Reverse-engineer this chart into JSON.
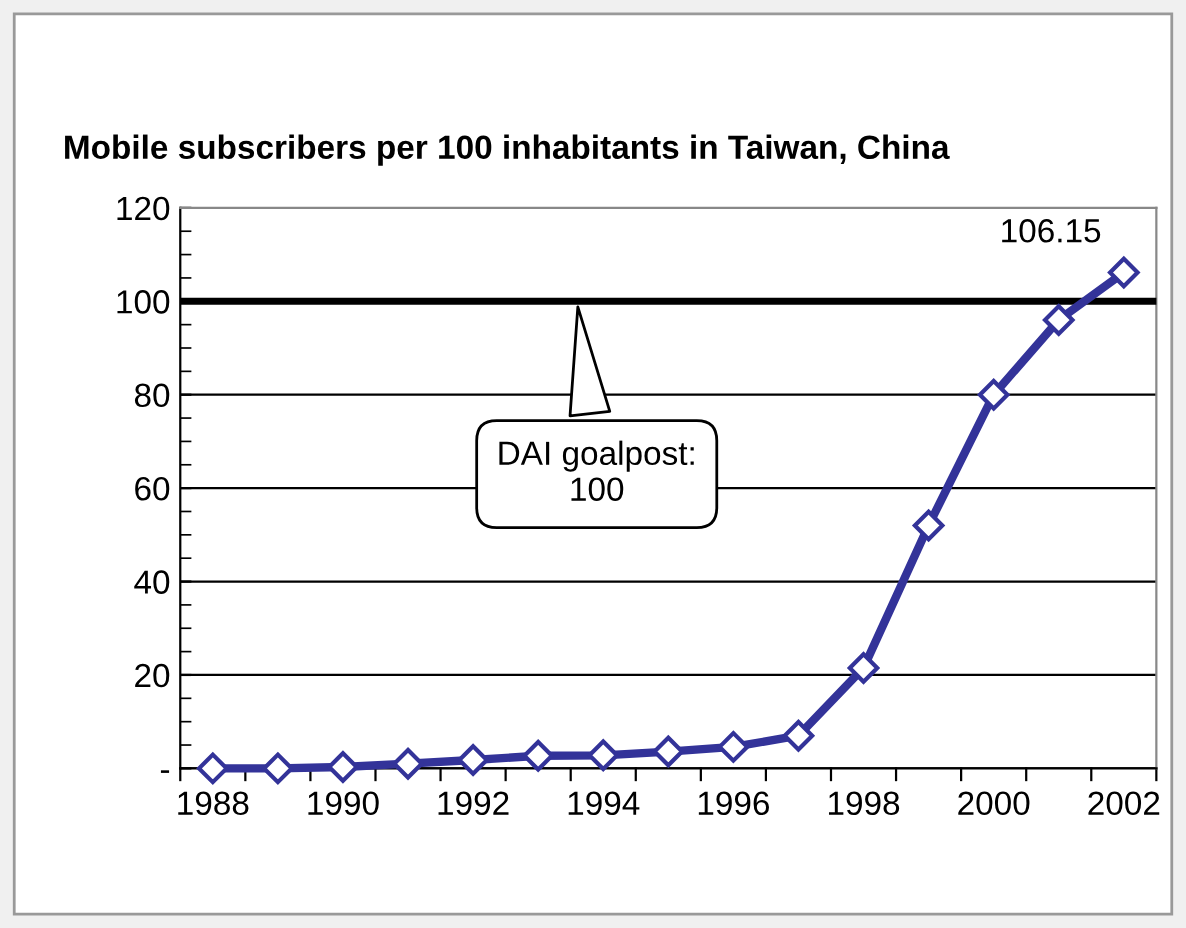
{
  "chart_data": {
    "type": "line",
    "title": "Mobile subscribers per 100 inhabitants in Taiwan, China",
    "categories": [
      "1988",
      null,
      "1990",
      null,
      "1992",
      null,
      "1994",
      null,
      "1996",
      null,
      "1998",
      null,
      "2000",
      null,
      "2002"
    ],
    "series": [
      {
        "color": "#333399",
        "values": [
          0.0,
          0.0,
          0.3,
          1.0,
          1.8,
          2.7,
          2.8,
          3.6,
          4.6,
          7.0,
          21.5,
          52.0,
          80.0,
          96.0,
          106.15
        ],
        "value_labels": [
          null,
          null,
          null,
          null,
          null,
          null,
          null,
          null,
          null,
          null,
          null,
          null,
          null,
          null,
          "106.15"
        ]
      }
    ],
    "ylim": [
      0,
      120
    ],
    "yticks": [
      {
        "value": 0,
        "label": "-"
      },
      20,
      40,
      60,
      80,
      100,
      120
    ],
    "ref_lines": [
      {
        "axis": "y",
        "value": 100,
        "label": "DAI goalpost:\n100",
        "color": "#000000"
      }
    ],
    "grid": "y",
    "marker": "diamond",
    "line_style": "solid",
    "legend": false
  }
}
